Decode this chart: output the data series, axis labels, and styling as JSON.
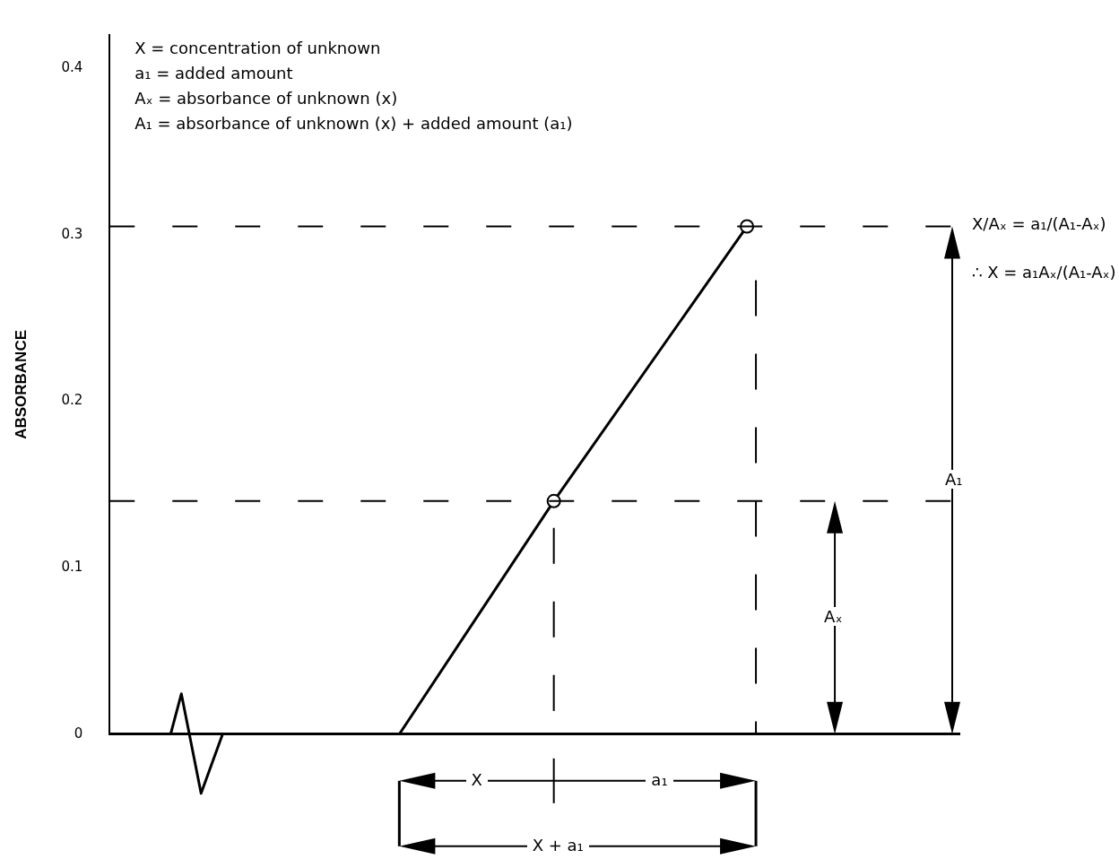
{
  "chart_data": {
    "type": "line",
    "ylabel": "ABSORBANCE",
    "annotations": [
      "X  =  concentration of unknown",
      "a₁  =  added amount",
      "Aₓ  =  absorbance of unknown (x)",
      "A₁  =  absorbance of unknown (x)  +  added amount (a₁)",
      "X/Aₓ  =  a₁/(A₁-Aₓ)",
      "∴ X  =  a₁Aₓ/(A₁-Aₓ)",
      "Aₓ",
      "A₁",
      "X",
      "a₁",
      "X + a₁"
    ],
    "categories": [
      null,
      null,
      null,
      null,
      null,
      null,
      null,
      null,
      null,
      null,
      null,
      null,
      null,
      null,
      null,
      null,
      null,
      null,
      null,
      null,
      null,
      null
    ],
    "series": [
      {
        "type": "line",
        "color": "#000000",
        "marker": "none",
        "values": [
          null,
          null,
          null,
          null,
          null,
          null,
          null,
          0,
          null,
          null,
          null,
          0.14,
          null,
          null,
          null,
          null,
          0.305,
          null,
          null,
          null,
          null,
          null
        ]
      },
      {
        "type": "scatter",
        "color": "#000000",
        "marker": "circle",
        "values": [
          null,
          null,
          null,
          null,
          null,
          null,
          null,
          null,
          null,
          null,
          null,
          0.14,
          null,
          null,
          null,
          null,
          0.305,
          null,
          null,
          null,
          null,
          null
        ]
      }
    ],
    "ylim": [
      0,
      0.42
    ],
    "yticks": [
      0,
      0.1,
      0.2,
      0.3,
      0.4
    ],
    "ref_lines": [
      {
        "axis": "y",
        "value": 0.305,
        "line_style": "dashed"
      },
      {
        "axis": "y",
        "value": 0.14,
        "line_style": "dashed"
      }
    ],
    "grid": false,
    "legend": false,
    "tick_labels": "y"
  }
}
